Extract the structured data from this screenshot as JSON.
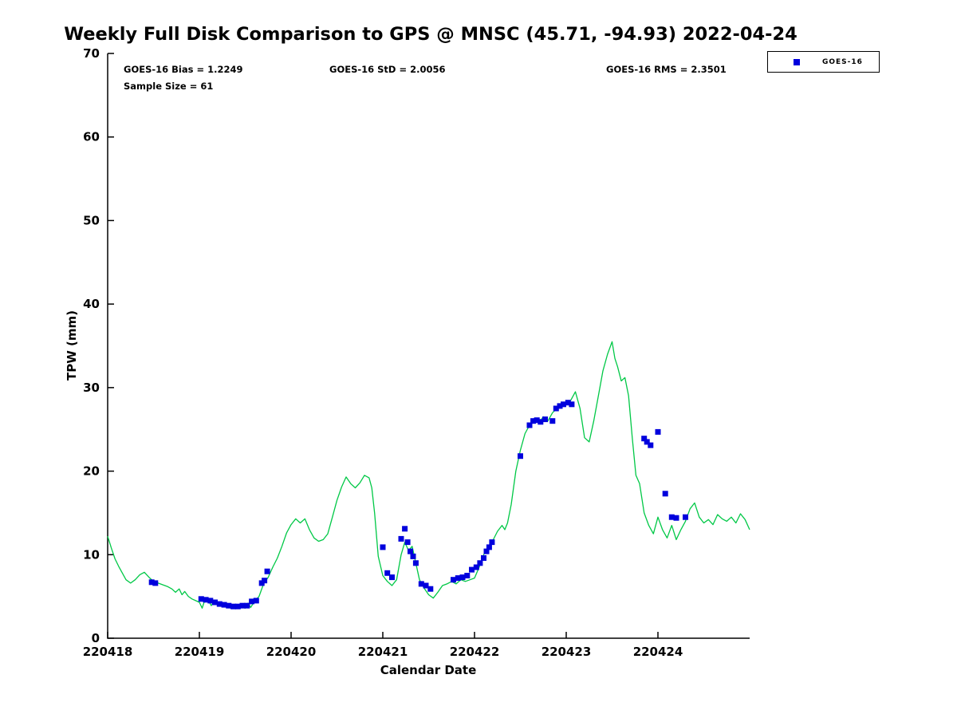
{
  "title": "Weekly Full Disk Comparison to GPS @ MNSC (45.71, -94.93) 2022-04-24",
  "annotations": {
    "bias": "GOES-16 Bias = 1.2249",
    "std": "GOES-16 StD = 2.0056",
    "rms": "GOES-16 RMS = 2.3501",
    "sample_size": "Sample Size = 61"
  },
  "legend": {
    "entries": [
      {
        "label": "GOES-16",
        "marker": "square",
        "color": "#0000dd"
      }
    ]
  },
  "colors": {
    "gps_line": "#00c846",
    "goes16_marker": "#0000dd",
    "axis": "#000000"
  },
  "chart_data": {
    "type": "line",
    "title": "Weekly Full Disk Comparison to GPS @ MNSC (45.71, -94.93) 2022-04-24",
    "xlabel": "Calendar Date",
    "ylabel": "TPW (mm)",
    "x_unit": "days since 220418",
    "xlim": [
      0,
      7
    ],
    "ylim": [
      0,
      70
    ],
    "grid": false,
    "legend_position": "top-right",
    "y_ticks": [
      0,
      10,
      20,
      30,
      40,
      50,
      60,
      70
    ],
    "x_tick_positions": [
      0,
      1,
      2,
      3,
      4,
      5,
      6
    ],
    "x_tick_labels": [
      "220418",
      "220419",
      "220420",
      "220421",
      "220422",
      "220423",
      "220424"
    ],
    "series": [
      {
        "name": "GPS",
        "type": "line",
        "color": "#00c846",
        "x": [
          0.0,
          0.04,
          0.08,
          0.12,
          0.16,
          0.2,
          0.25,
          0.3,
          0.35,
          0.4,
          0.45,
          0.5,
          0.55,
          0.6,
          0.65,
          0.7,
          0.74,
          0.78,
          0.81,
          0.84,
          0.88,
          0.92,
          0.96,
          1.0,
          1.03,
          1.06,
          1.1,
          1.13,
          1.16,
          1.2,
          1.25,
          1.3,
          1.35,
          1.4,
          1.45,
          1.5,
          1.53,
          1.56,
          1.6,
          1.65,
          1.7,
          1.75,
          1.8,
          1.85,
          1.9,
          1.95,
          2.0,
          2.05,
          2.1,
          2.15,
          2.2,
          2.25,
          2.3,
          2.35,
          2.4,
          2.45,
          2.5,
          2.55,
          2.6,
          2.65,
          2.7,
          2.75,
          2.8,
          2.85,
          2.88,
          2.91,
          2.95,
          3.0,
          3.05,
          3.1,
          3.15,
          3.2,
          3.24,
          3.28,
          3.32,
          3.36,
          3.4,
          3.45,
          3.5,
          3.55,
          3.6,
          3.65,
          3.7,
          3.75,
          3.8,
          3.85,
          3.9,
          3.95,
          4.0,
          4.05,
          4.1,
          4.15,
          4.2,
          4.25,
          4.3,
          4.33,
          4.36,
          4.4,
          4.45,
          4.5,
          4.55,
          4.6,
          4.65,
          4.7,
          4.75,
          4.8,
          4.85,
          4.9,
          4.95,
          5.0,
          5.05,
          5.1,
          5.15,
          5.2,
          5.25,
          5.3,
          5.35,
          5.4,
          5.45,
          5.5,
          5.53,
          5.56,
          5.6,
          5.64,
          5.68,
          5.72,
          5.76,
          5.8,
          5.85,
          5.9,
          5.95,
          6.0,
          6.05,
          6.1,
          6.15,
          6.2,
          6.25,
          6.3,
          6.35,
          6.4,
          6.45,
          6.5,
          6.55,
          6.6,
          6.65,
          6.7,
          6.75,
          6.8,
          6.85,
          6.9,
          6.95,
          7.0
        ],
        "y": [
          12.2,
          10.8,
          9.5,
          8.6,
          7.8,
          7.0,
          6.6,
          7.0,
          7.6,
          7.9,
          7.3,
          6.8,
          6.6,
          6.4,
          6.2,
          5.9,
          5.5,
          5.9,
          5.2,
          5.6,
          5.0,
          4.7,
          4.5,
          4.3,
          3.6,
          4.6,
          4.5,
          3.9,
          4.4,
          4.1,
          3.9,
          3.7,
          3.6,
          3.7,
          3.8,
          3.6,
          4.2,
          3.7,
          4.4,
          5.0,
          6.5,
          7.3,
          8.5,
          9.6,
          11.0,
          12.6,
          13.6,
          14.3,
          13.8,
          14.3,
          13.0,
          12.0,
          11.6,
          11.8,
          12.5,
          14.5,
          16.5,
          18.1,
          19.3,
          18.5,
          18.0,
          18.6,
          19.5,
          19.2,
          18.0,
          15.0,
          9.8,
          7.5,
          6.8,
          6.3,
          7.0,
          10.0,
          11.5,
          10.5,
          11.0,
          9.0,
          7.0,
          6.0,
          5.2,
          4.8,
          5.5,
          6.3,
          6.5,
          6.8,
          6.5,
          7.0,
          6.8,
          7.0,
          7.2,
          8.5,
          10.0,
          11.0,
          11.7,
          12.8,
          13.5,
          13.0,
          13.8,
          16.0,
          20.0,
          22.5,
          24.5,
          25.5,
          26.3,
          25.8,
          26.5,
          26.0,
          27.0,
          27.5,
          27.8,
          28.0,
          28.5,
          29.5,
          27.5,
          24.0,
          23.5,
          26.0,
          29.0,
          32.0,
          34.0,
          35.5,
          33.5,
          32.5,
          30.8,
          31.2,
          29.0,
          24.0,
          19.5,
          18.5,
          15.0,
          13.5,
          12.5,
          14.5,
          13.0,
          12.0,
          13.5,
          11.8,
          13.0,
          14.0,
          15.5,
          16.2,
          14.5,
          13.8,
          14.2,
          13.6,
          14.8,
          14.3,
          14.0,
          14.5,
          13.8,
          14.9,
          14.2,
          13.0
        ]
      },
      {
        "name": "GOES-16",
        "type": "scatter",
        "marker": "square",
        "color": "#0000dd",
        "x": [
          0.48,
          0.52,
          1.02,
          1.07,
          1.12,
          1.17,
          1.22,
          1.27,
          1.32,
          1.37,
          1.42,
          1.47,
          1.52,
          1.57,
          1.62,
          1.68,
          1.71,
          1.74,
          3.0,
          3.05,
          3.1,
          3.2,
          3.24,
          3.27,
          3.3,
          3.33,
          3.36,
          3.42,
          3.47,
          3.52,
          3.77,
          3.82,
          3.87,
          3.92,
          3.97,
          4.02,
          4.06,
          4.1,
          4.13,
          4.16,
          4.19,
          4.5,
          4.6,
          4.64,
          4.68,
          4.72,
          4.77,
          4.85,
          4.89,
          4.93,
          4.97,
          5.02,
          5.06,
          5.85,
          5.88,
          5.92,
          6.0,
          6.08,
          6.15,
          6.2,
          6.3
        ],
        "y": [
          6.7,
          6.6,
          4.7,
          4.6,
          4.5,
          4.3,
          4.1,
          4.0,
          3.9,
          3.8,
          3.8,
          3.9,
          3.9,
          4.4,
          4.5,
          6.6,
          6.9,
          8.0,
          10.9,
          7.8,
          7.3,
          11.9,
          13.1,
          11.5,
          10.4,
          9.8,
          9.0,
          6.5,
          6.3,
          5.9,
          7.0,
          7.2,
          7.3,
          7.5,
          8.2,
          8.5,
          9.0,
          9.6,
          10.4,
          10.9,
          11.5,
          21.8,
          25.5,
          26.0,
          26.1,
          25.9,
          26.2,
          26.0,
          27.5,
          27.8,
          28.0,
          28.2,
          28.0,
          23.9,
          23.5,
          23.1,
          24.7,
          17.3,
          14.5,
          14.4,
          14.5
        ]
      }
    ]
  }
}
